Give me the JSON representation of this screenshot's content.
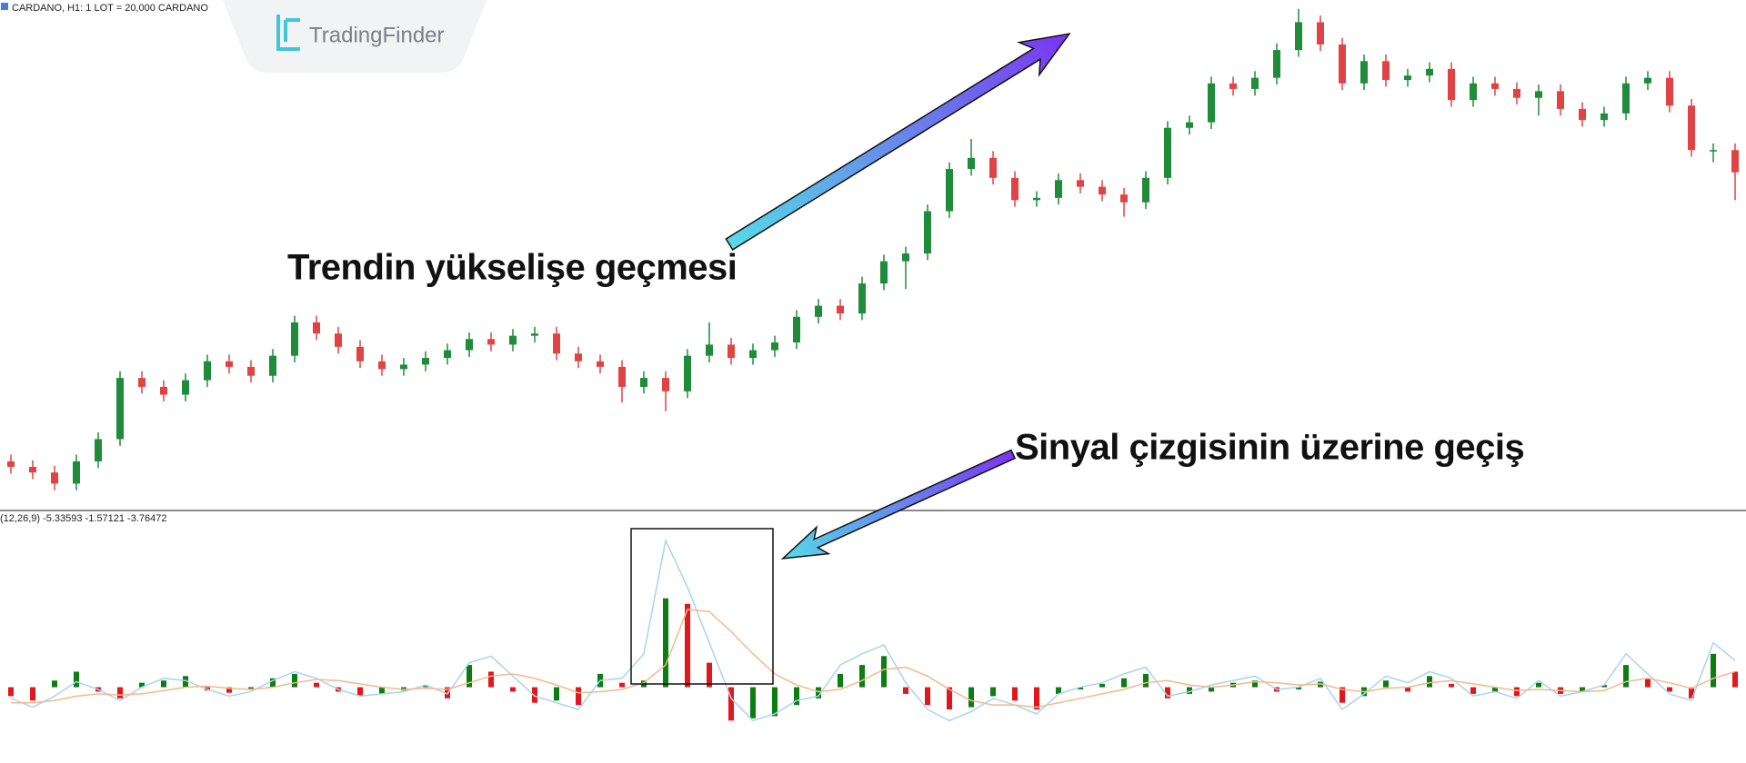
{
  "header": {
    "symbol": "CARDANO, H1:  1 LOT = 20,000 CARDANO"
  },
  "logo": "TradingFinder",
  "annotations": [
    "Trendin yükselişe geçmesi",
    "Sinyal çizgisinin üzerine geçiş"
  ],
  "chart_data": [
    {
      "type": "candlestick",
      "up_color": "#1f8b3b",
      "down_color": "#e04343",
      "ylim": [
        0,
        460
      ],
      "open": [
        45,
        40,
        35,
        25,
        45,
        65,
        120,
        112,
        105,
        118,
        135,
        130,
        122,
        140,
        170,
        160,
        148,
        135,
        128,
        132,
        138,
        145,
        155,
        150,
        158,
        160,
        142,
        135,
        130,
        112,
        120,
        108,
        140,
        150,
        138,
        145,
        152,
        175,
        185,
        178,
        205,
        225,
        232,
        270,
        308,
        318,
        300,
        280,
        282,
        298,
        292,
        285,
        278,
        300,
        345,
        350,
        385,
        380,
        390,
        415,
        440,
        420,
        385,
        405,
        388,
        392,
        398,
        370,
        385,
        380,
        372,
        378,
        362,
        352,
        358,
        385,
        390,
        365,
        325,
        325
      ],
      "high": [
        51,
        46,
        41,
        51,
        71,
        126,
        126,
        118,
        124,
        141,
        141,
        136,
        146,
        176,
        176,
        166,
        154,
        141,
        138,
        144,
        151,
        161,
        161,
        164,
        166,
        166,
        148,
        141,
        136,
        126,
        126,
        146,
        170,
        156,
        151,
        158,
        181,
        191,
        191,
        211,
        231,
        238,
        276,
        314,
        335,
        324,
        306,
        288,
        304,
        304,
        298,
        291,
        306,
        351,
        356,
        391,
        391,
        396,
        421,
        452,
        446,
        426,
        411,
        411,
        398,
        404,
        404,
        391,
        391,
        386,
        384,
        384,
        368,
        364,
        391,
        396,
        396,
        371,
        331,
        331
      ],
      "low": [
        34,
        29,
        19,
        19,
        39,
        59,
        106,
        99,
        99,
        112,
        124,
        116,
        116,
        134,
        154,
        142,
        129,
        122,
        122,
        126,
        132,
        139,
        144,
        144,
        152,
        136,
        129,
        124,
        98,
        106,
        90,
        102,
        134,
        132,
        132,
        139,
        146,
        169,
        172,
        172,
        199,
        200,
        226,
        264,
        302,
        294,
        274,
        274,
        276,
        286,
        279,
        265,
        272,
        294,
        339,
        344,
        374,
        374,
        384,
        409,
        414,
        379,
        379,
        382,
        382,
        386,
        364,
        364,
        374,
        366,
        356,
        356,
        346,
        346,
        352,
        379,
        359,
        319,
        314,
        280
      ],
      "close": [
        40,
        35,
        25,
        45,
        65,
        120,
        112,
        105,
        118,
        135,
        130,
        122,
        140,
        170,
        160,
        148,
        135,
        128,
        132,
        138,
        145,
        155,
        150,
        158,
        160,
        142,
        135,
        130,
        112,
        120,
        108,
        140,
        150,
        138,
        145,
        152,
        175,
        185,
        178,
        205,
        225,
        232,
        270,
        308,
        318,
        300,
        280,
        282,
        298,
        292,
        285,
        278,
        300,
        345,
        350,
        385,
        380,
        390,
        415,
        440,
        420,
        385,
        405,
        388,
        392,
        398,
        370,
        385,
        380,
        372,
        378,
        362,
        352,
        358,
        385,
        390,
        365,
        325,
        325,
        305
      ]
    },
    {
      "type": "macd",
      "label": "(12,26,9) -5.33593 -1.57121 -3.76472",
      "up_color": "#0b7d12",
      "down_color": "#e3161b",
      "ylim": [
        -60,
        150
      ],
      "values": [
        -8,
        -12,
        6,
        14,
        -4,
        -10,
        4,
        6,
        10,
        -3,
        -5,
        -2,
        8,
        12,
        4,
        -4,
        -8,
        -6,
        -3,
        2,
        -10,
        20,
        14,
        -4,
        -14,
        -12,
        -16,
        12,
        4,
        6,
        80,
        75,
        22,
        -30,
        -28,
        -26,
        -16,
        -10,
        12,
        20,
        28,
        -6,
        -16,
        -20,
        -18,
        -8,
        -12,
        -20,
        -6,
        -2,
        3,
        8,
        12,
        -10,
        -6,
        -4,
        4,
        6,
        -4,
        -2,
        5,
        -14,
        -8,
        6,
        -4,
        10,
        3,
        -6,
        -4,
        -8,
        4,
        -6,
        -4,
        2,
        20,
        8,
        -4,
        -10,
        30,
        14
      ],
      "series": [
        {
          "color": "#a9d3f2",
          "values": [
            -10,
            -18,
            -8,
            5,
            -2,
            -12,
            0,
            8,
            6,
            -2,
            -8,
            -4,
            6,
            14,
            8,
            -2,
            -8,
            -6,
            -4,
            2,
            -6,
            22,
            28,
            10,
            -8,
            -14,
            -20,
            6,
            8,
            30,
            132,
            90,
            40,
            -10,
            -30,
            -24,
            -12,
            -8,
            20,
            30,
            38,
            4,
            -20,
            -30,
            -22,
            -10,
            -16,
            -24,
            -6,
            0,
            4,
            12,
            18,
            -8,
            -4,
            2,
            6,
            10,
            -2,
            0,
            8,
            -20,
            -6,
            10,
            4,
            14,
            8,
            -8,
            -4,
            -10,
            6,
            -8,
            -4,
            2,
            30,
            12,
            -6,
            -12,
            40,
            24
          ]
        },
        {
          "color": "#f3b98c",
          "values": [
            -14,
            -14,
            -12,
            -8,
            -6,
            -7,
            -6,
            -3,
            0,
            1,
            -1,
            -2,
            0,
            4,
            7,
            6,
            3,
            0,
            -2,
            -1,
            -2,
            4,
            10,
            12,
            8,
            2,
            -5,
            -4,
            -2,
            4,
            20,
            70,
            68,
            50,
            30,
            12,
            2,
            -4,
            -2,
            6,
            16,
            18,
            10,
            -2,
            -12,
            -16,
            -16,
            -18,
            -14,
            -10,
            -6,
            -2,
            4,
            6,
            2,
            0,
            2,
            5,
            4,
            2,
            3,
            -2,
            -4,
            -1,
            0,
            4,
            6,
            3,
            0,
            -3,
            -2,
            -3,
            -4,
            -3,
            5,
            8,
            4,
            -1,
            8,
            14
          ]
        }
      ]
    }
  ]
}
